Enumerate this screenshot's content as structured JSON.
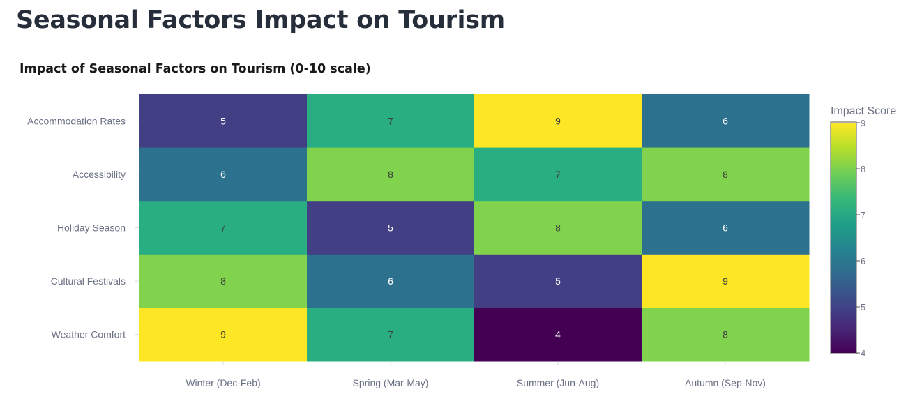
{
  "page": {
    "title": "Seasonal Factors Impact on Tourism"
  },
  "chart_data": {
    "type": "heatmap",
    "title": "Impact of Seasonal Factors on Tourism (0-10 scale)",
    "x_categories": [
      "Winter (Dec-Feb)",
      "Spring (Mar-May)",
      "Summer (Jun-Aug)",
      "Autumn (Sep-Nov)"
    ],
    "y_categories": [
      "Accommodation Rates",
      "Accessibility",
      "Holiday Season",
      "Cultural Festivals",
      "Weather Comfort"
    ],
    "values": [
      [
        5,
        7,
        9,
        6
      ],
      [
        6,
        8,
        7,
        8
      ],
      [
        7,
        5,
        8,
        6
      ],
      [
        8,
        6,
        5,
        9
      ],
      [
        9,
        7,
        4,
        8
      ]
    ],
    "colorbar": {
      "title": "Impact Score",
      "range": [
        4,
        9
      ],
      "ticks": [
        4,
        5,
        6,
        7,
        8,
        9
      ],
      "colorscale": "Viridis"
    },
    "colors": {
      "4": "#440154",
      "5": "#423f85",
      "6": "#2c728e",
      "7": "#28ae80",
      "8": "#81d34d",
      "9": "#fde725"
    },
    "label_colors": {
      "dark": "#ffffff",
      "light": "#3d3d3d"
    }
  }
}
